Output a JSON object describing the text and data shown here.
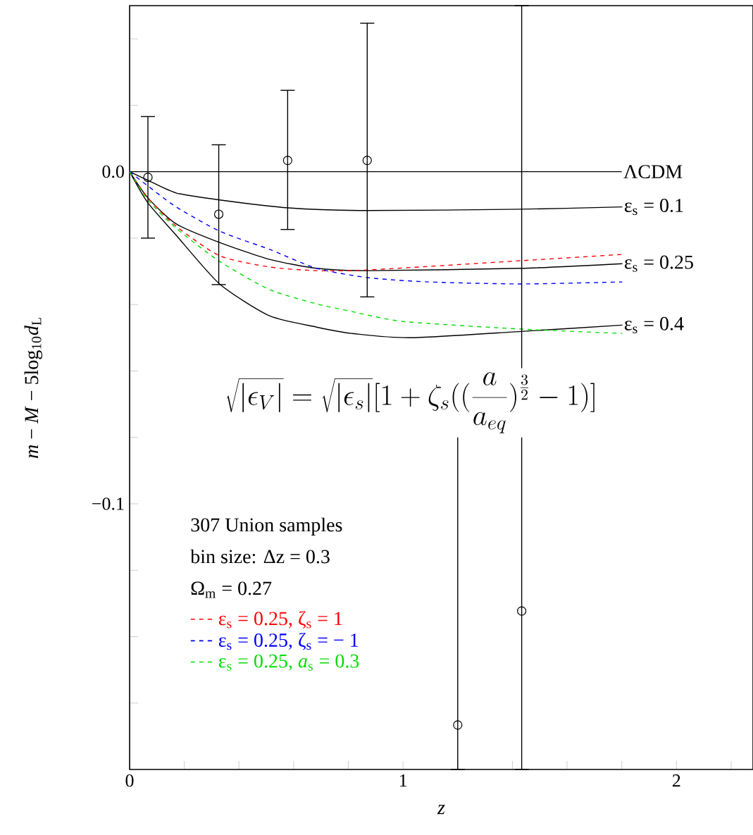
{
  "chart_data": {
    "type": "line",
    "xlabel": "z",
    "ylabel": "*m* − *M* − 5log$_{10}$*d*$_{L}$",
    "xlim": [
      0,
      2.28
    ],
    "ylim": [
      -0.18,
      0.05
    ],
    "xticks": [
      0,
      {
        "value": 0.2,
        "label": null
      },
      {
        "value": 0.4,
        "label": null
      },
      {
        "value": 0.6,
        "label": null
      },
      {
        "value": 0.8,
        "label": null
      },
      1,
      {
        "value": 1.2,
        "label": null
      },
      {
        "value": 1.4,
        "label": null
      },
      {
        "value": 1.6,
        "label": null
      },
      {
        "value": 1.8,
        "label": null
      },
      2,
      {
        "value": 2.2,
        "label": null
      }
    ],
    "yticks": [
      {
        "value": -0.16,
        "label": null
      },
      {
        "value": -0.14,
        "label": null
      },
      {
        "value": -0.12,
        "label": null
      },
      {
        "value": -0.1,
        "label": "−0.1"
      },
      {
        "value": -0.08,
        "label": null
      },
      {
        "value": -0.06,
        "label": null
      },
      {
        "value": -0.04,
        "label": null
      },
      {
        "value": -0.02,
        "label": null
      },
      {
        "value": 0,
        "label": "0.0"
      },
      {
        "value": 0.02,
        "label": null
      },
      {
        "value": 0.04,
        "label": null
      }
    ],
    "legend": "bottom left",
    "annotations": [
      "307 Union samples",
      "bin size: Δz = 0.3",
      "Ω$_{m}$ = 0.27",
      "\\sqrt{|\\epsilon_V|} = \\sqrt{|\\epsilon_s|}[1+\\zeta_s((\\frac{a}{a_{eq}})^{\\frac{3}{2}}-1)]"
    ],
    "series": [
      {
        "name": "ΛCDM",
        "color": "#000000",
        "line_style": "solid",
        "marker": "none",
        "x": [
          0,
          1.8
        ],
        "values": [
          0,
          0
        ]
      },
      {
        "name": "ε$_{s}$ = 0.1",
        "color": "#000000",
        "line_style": "solid",
        "marker": "none",
        "x": [
          0,
          0.067,
          0.17,
          0.329,
          0.581,
          0.871,
          1.432,
          1.802
        ],
        "values": [
          0,
          -0.0026,
          -0.0064,
          -0.0085,
          -0.0109,
          -0.0117,
          -0.0113,
          -0.0106
        ]
      },
      {
        "name": "ε$_{s}$ = 0.25",
        "color": "#000000",
        "line_style": "solid",
        "marker": "none",
        "x": [
          0,
          0.067,
          0.17,
          0.329,
          0.512,
          0.684,
          0.871,
          1.432,
          1.802
        ],
        "values": [
          0,
          -0.0079,
          -0.0157,
          -0.0213,
          -0.0264,
          -0.0291,
          -0.0298,
          -0.0291,
          -0.0277
        ]
      },
      {
        "name": "ε$_{s}$ = 0.4",
        "color": "#000000",
        "line_style": "solid",
        "marker": "none",
        "x": [
          0,
          0.067,
          0.17,
          0.329,
          0.512,
          0.684,
          0.812,
          1.026,
          1.432,
          1.802
        ],
        "values": [
          0,
          -0.0094,
          -0.0191,
          -0.0338,
          -0.0434,
          -0.0468,
          -0.0487,
          -0.05,
          -0.0481,
          -0.0462
        ]
      },
      {
        "name": "ε$_{s}$ = 0.25, ζ$_{s}$ = 1",
        "color": "#ff0000",
        "line_style": "dashed",
        "marker": "none",
        "x": [
          0,
          0.067,
          0.17,
          0.329,
          0.512,
          0.684,
          0.871,
          1.432,
          1.802
        ],
        "values": [
          0,
          -0.0079,
          -0.0164,
          -0.0253,
          -0.0287,
          -0.0298,
          -0.0296,
          -0.0268,
          -0.0249
        ]
      },
      {
        "name": "ε$_{s}$ = 0.25, ζ$_{s}$ = − 1",
        "color": "#0000ff",
        "line_style": "dashed",
        "marker": "none",
        "x": [
          0,
          0.067,
          0.17,
          0.329,
          0.512,
          0.684,
          0.871,
          1.093,
          1.432,
          1.802
        ],
        "values": [
          0,
          -0.0043,
          -0.0106,
          -0.0179,
          -0.0234,
          -0.0291,
          -0.0319,
          -0.0332,
          -0.0338,
          -0.0332
        ]
      },
      {
        "name": "ε$_{s}$ = 0.25, *a*$_{s}$ = 0.3",
        "color": "#00dd00",
        "line_style": "dashed",
        "marker": "none",
        "x": [
          0,
          0.067,
          0.17,
          0.329,
          0.512,
          0.684,
          0.812,
          1.0,
          1.432,
          1.802
        ],
        "values": [
          0,
          -0.0085,
          -0.017,
          -0.027,
          -0.0355,
          -0.0398,
          -0.0421,
          -0.0451,
          -0.0474,
          -0.0487
        ]
      },
      {
        "type": "scatter",
        "color": "#000000",
        "marker": "circle",
        "x": [
          0.067,
          0.326,
          0.578,
          0.869,
          1.2,
          1.434
        ],
        "values": [
          -0.0017,
          -0.0128,
          0.0034,
          0.0034,
          -0.1666,
          -0.1323
        ],
        "errors": [
          [
            -0.02,
            0.0166
          ],
          [
            -0.034,
            0.0081
          ],
          [
            -0.0174,
            0.0245
          ],
          [
            -0.0377,
            0.0447
          ],
          [
            -0.18,
            -0.07
          ],
          [
            -0.18,
            0.05
          ]
        ]
      }
    ]
  }
}
